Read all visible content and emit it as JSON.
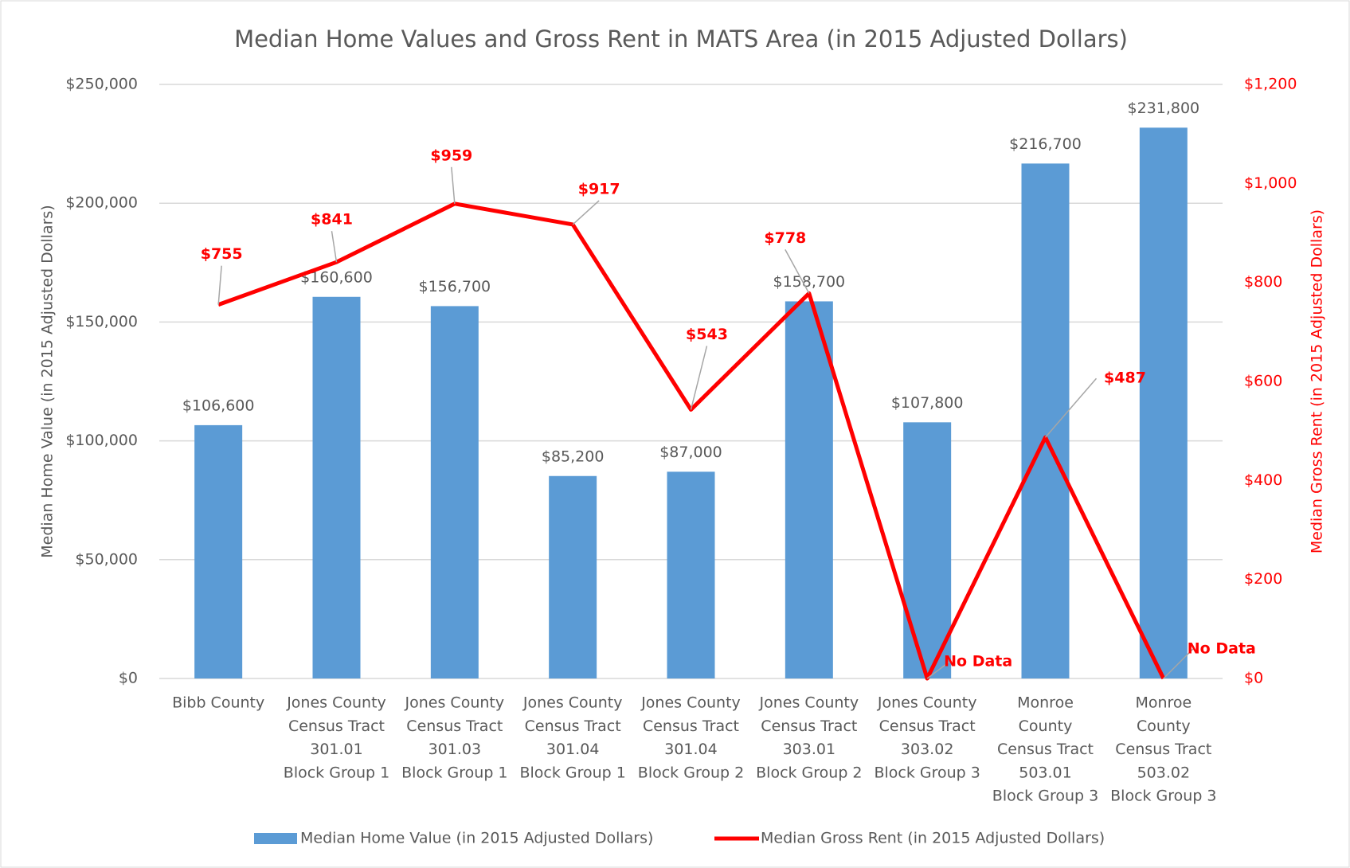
{
  "chart_data": {
    "type": "bar_line",
    "title": "Median Home Values and Gross Rent in MATS Area (in 2015 Adjusted Dollars)",
    "y_label": "Median Home Value (in 2015 Adjusted Dollars)",
    "y2_label": "Median Gross Rent (in 2015 Adjusted Dollars)",
    "categories": [
      [
        "Bibb County"
      ],
      [
        "Jones County",
        "Census Tract",
        "301.01",
        "Block Group 1"
      ],
      [
        "Jones County",
        "Census Tract",
        "301.03",
        "Block Group 1"
      ],
      [
        "Jones County",
        "Census Tract",
        "301.04",
        "Block Group 1"
      ],
      [
        "Jones County",
        "Census Tract",
        "301.04",
        "Block Group 2"
      ],
      [
        "Jones County",
        "Census Tract",
        "303.01",
        "Block Group 2"
      ],
      [
        "Jones County",
        "Census Tract",
        "303.02",
        "Block Group 3"
      ],
      [
        "Monroe",
        "County",
        "Census Tract",
        "503.01",
        "Block Group 3"
      ],
      [
        "Monroe",
        "County",
        "Census Tract",
        "503.02",
        "Block Group 3"
      ]
    ],
    "series": [
      {
        "name": "Median Home Value (in 2015 Adjusted Dollars)",
        "type": "bar",
        "color": "#5b9bd5",
        "values": [
          106600,
          160600,
          156700,
          85200,
          87000,
          158700,
          107800,
          216700,
          231800
        ],
        "value_labels": [
          "$106,600",
          "$160,600",
          "$156,700",
          "$85,200",
          "$87,000",
          "$158,700",
          "$107,800",
          "$216,700",
          "$231,800"
        ]
      },
      {
        "name": "Median Gross Rent (in 2015 Adjusted Dollars)",
        "type": "line",
        "axis": "y2",
        "color": "#ff0000",
        "values": [
          755,
          841,
          959,
          917,
          543,
          778,
          0,
          487,
          0
        ],
        "value_labels": [
          "$755",
          "$841",
          "$959",
          "$917",
          "$543",
          "$778",
          "No Data",
          "$487",
          "No Data"
        ]
      }
    ],
    "ylim": [
      0,
      250000
    ],
    "yticks": [
      {
        "value": 0,
        "label": "$0"
      },
      {
        "value": 50000,
        "label": "$50,000"
      },
      {
        "value": 100000,
        "label": "$100,000"
      },
      {
        "value": 150000,
        "label": "$150,000"
      },
      {
        "value": 200000,
        "label": "$200,000"
      },
      {
        "value": 250000,
        "label": "$250,000"
      }
    ],
    "y2lim": [
      0,
      1200
    ],
    "y2ticks": [
      {
        "value": 0,
        "label": "$0"
      },
      {
        "value": 200,
        "label": "$200"
      },
      {
        "value": 400,
        "label": "$400"
      },
      {
        "value": 600,
        "label": "$600"
      },
      {
        "value": 800,
        "label": "$800"
      },
      {
        "value": 1000,
        "label": "$1,000"
      },
      {
        "value": 1200,
        "label": "$1,200"
      }
    ],
    "grid": true,
    "legend": "bottom"
  }
}
